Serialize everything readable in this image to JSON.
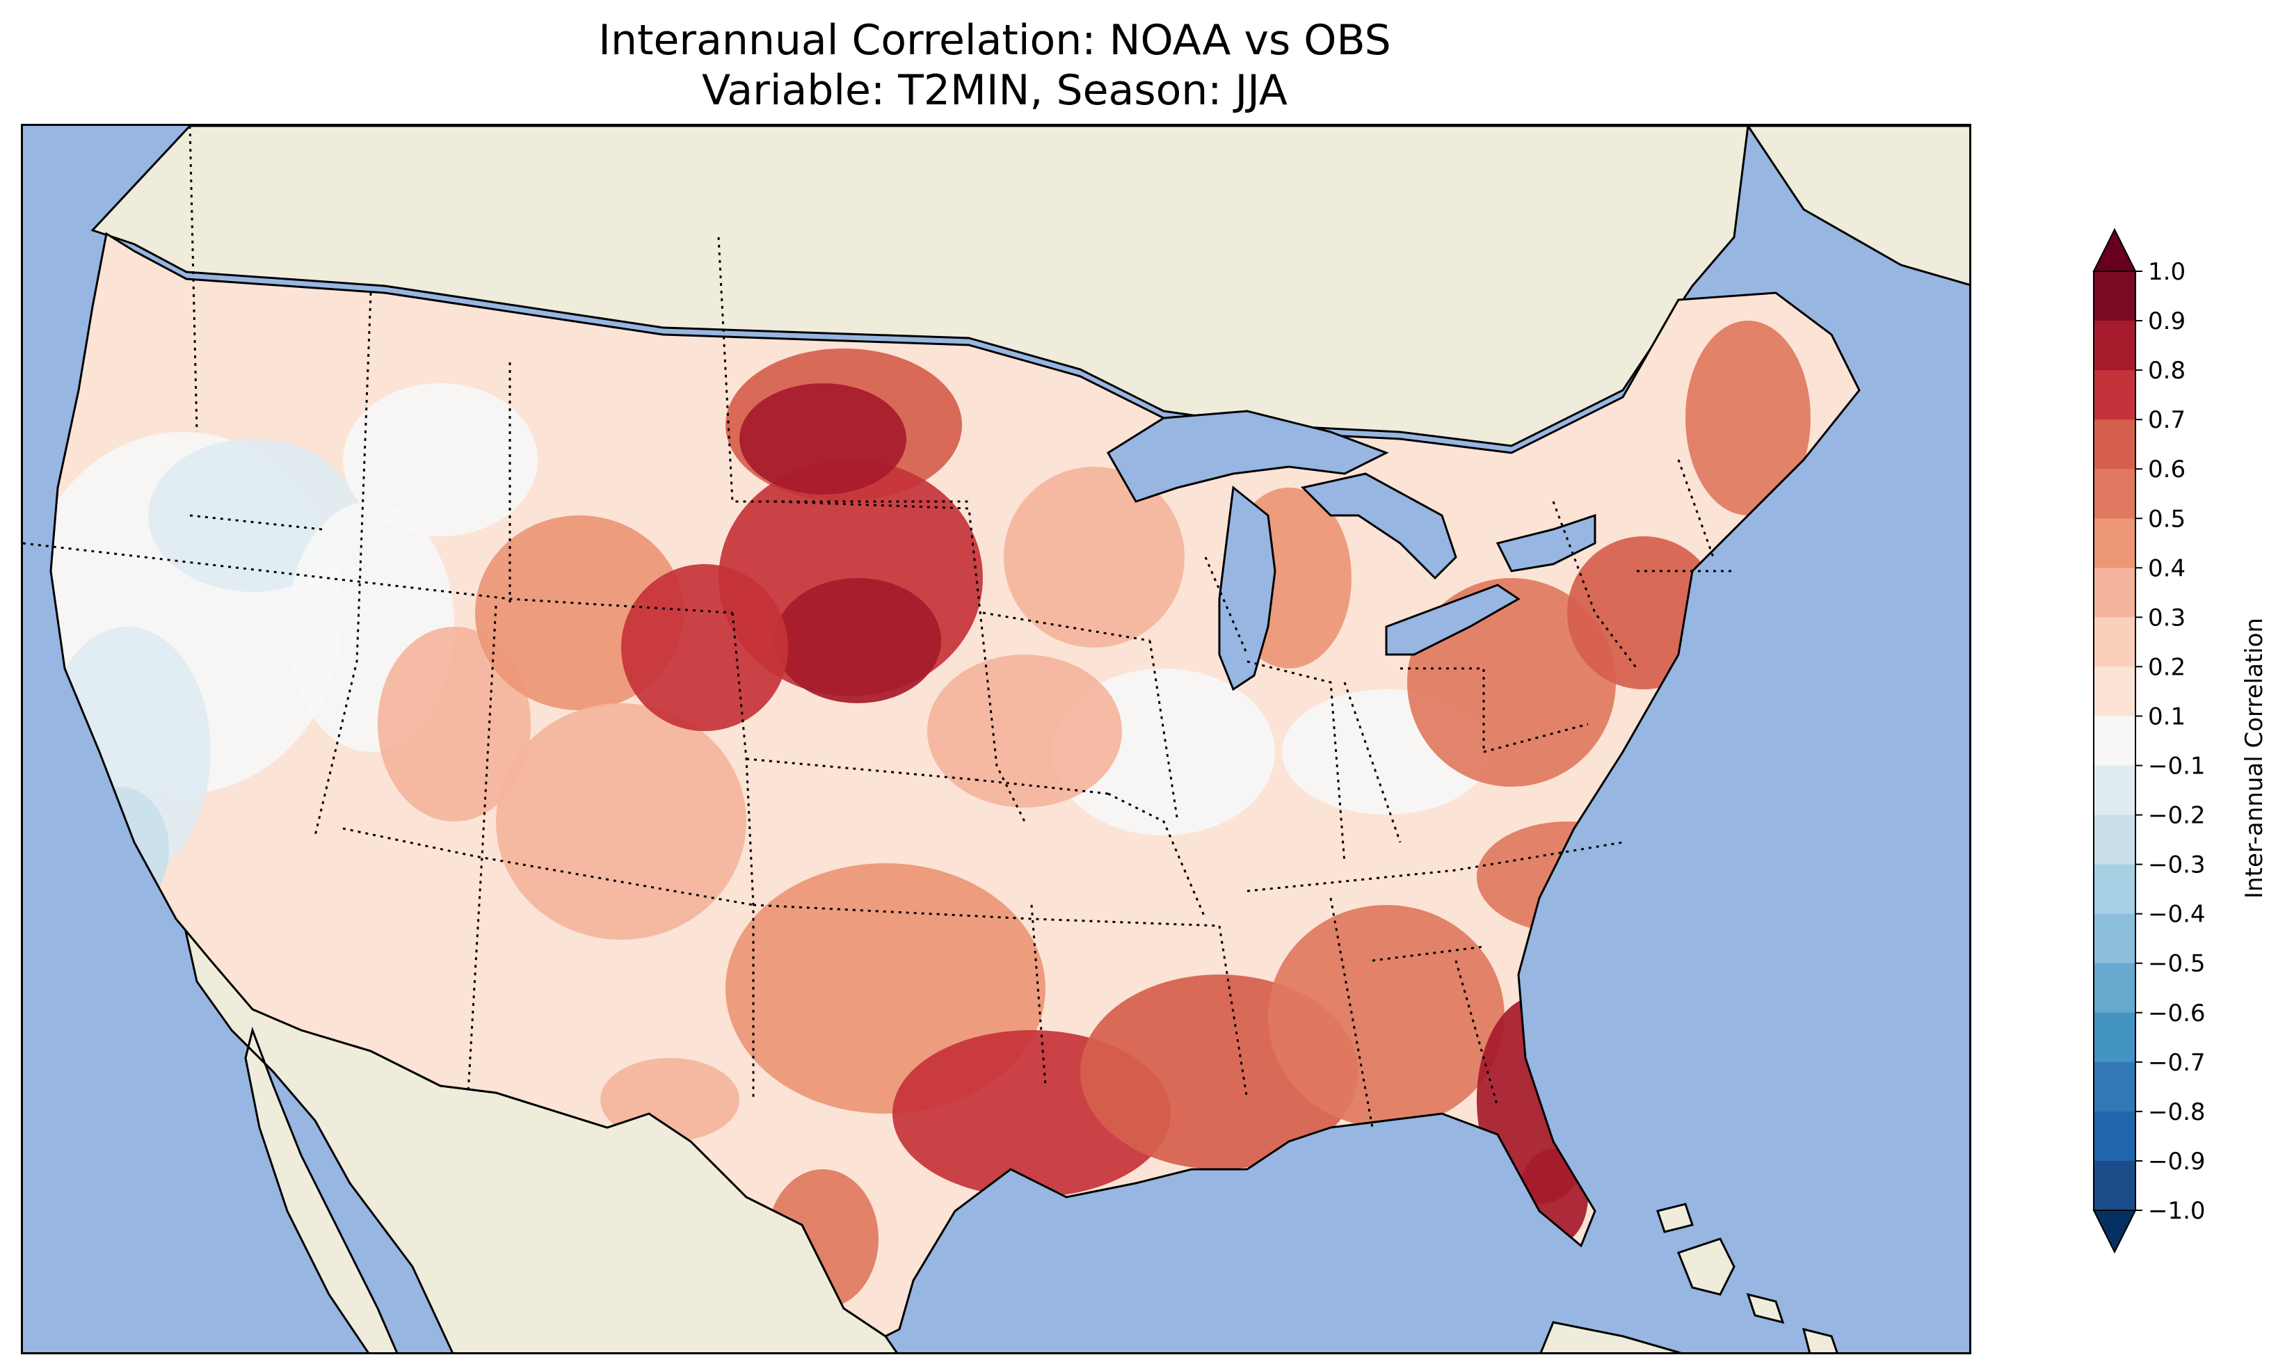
{
  "title": {
    "line1": "Interannual Correlation: NOAA vs OBS",
    "line2": "Variable: T2MIN, Season: JJA"
  },
  "map": {
    "projection": "Lambert conformal (CONUS)",
    "ocean_color": "#97b6e1",
    "land_color": "#efecdc",
    "lakes_color": "#97b6e1",
    "coastline_color": "#000000",
    "state_borders": "dotted"
  },
  "field_summary": {
    "highest_regions": [
      "Northern Plains (Dakotas, Nebraska)",
      "Florida",
      "Gulf Coast (Louisiana, SE Texas)",
      "Northeast / Mid-Atlantic coast"
    ],
    "lowest_regions": [
      "California",
      "Nevada / Great Basin",
      "Pacific Northwest interior",
      "Ohio Valley (near zero)"
    ]
  },
  "colorbar": {
    "label": "Inter-annual Correlation",
    "ticks": [
      "1.0",
      "0.9",
      "0.8",
      "0.7",
      "0.6",
      "0.5",
      "0.4",
      "0.3",
      "0.2",
      "0.1",
      "−0.1",
      "−0.2",
      "−0.3",
      "−0.4",
      "−0.5",
      "−0.6",
      "−0.7",
      "−0.8",
      "−0.9",
      "−1.0"
    ],
    "levels": [
      1.0,
      0.9,
      0.8,
      0.7,
      0.6,
      0.5,
      0.4,
      0.3,
      0.2,
      0.1,
      -0.1,
      -0.2,
      -0.3,
      -0.4,
      -0.5,
      -0.6,
      -0.7,
      -0.8,
      -0.9,
      -1.0
    ],
    "colors_top_to_bottom": [
      "#7b0a22",
      "#a61b2b",
      "#c5333a",
      "#d6604d",
      "#e0795f",
      "#ec9676",
      "#f4b59c",
      "#fad0bd",
      "#fbe3d6",
      "#f7f7f7",
      "#e0ebf2",
      "#c9dfec",
      "#a8d0e4",
      "#8cbfdb",
      "#67a9cf",
      "#4393c3",
      "#3278b6",
      "#2166ac",
      "#1a4c8a"
    ],
    "extend_max_color": "#67001f",
    "extend_min_color": "#053061"
  }
}
